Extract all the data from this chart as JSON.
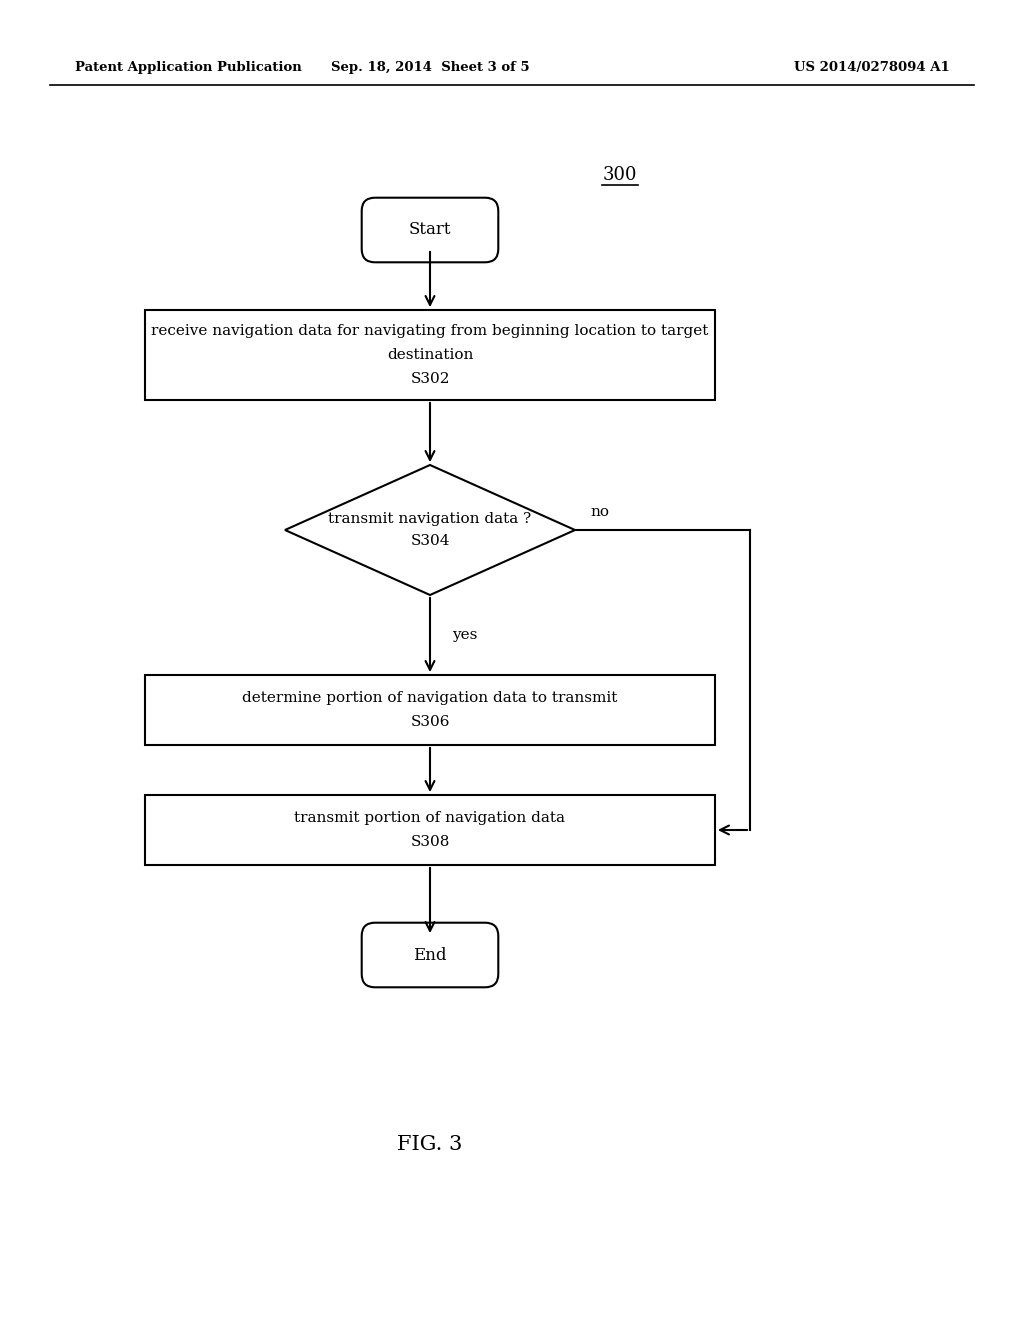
{
  "bg_color": "#ffffff",
  "header_left": "Patent Application Publication",
  "header_mid": "Sep. 18, 2014  Sheet 3 of 5",
  "header_right": "US 2014/0278094 A1",
  "diagram_label": "300",
  "footer_label": "FIG. 3",
  "start_label": "Start",
  "end_label": "End",
  "s302_line1": "receive navigation data for navigating from beginning location to target",
  "s302_line2": "destination",
  "s302_line3": "S302",
  "s304_line1": "transmit navigation data ?",
  "s304_line2": "S304",
  "s306_line1": "determine portion of navigation data to transmit",
  "s306_line2": "S306",
  "s308_line1": "transmit portion of navigation data",
  "s308_line2": "S308",
  "yes_label": "yes",
  "no_label": "no"
}
